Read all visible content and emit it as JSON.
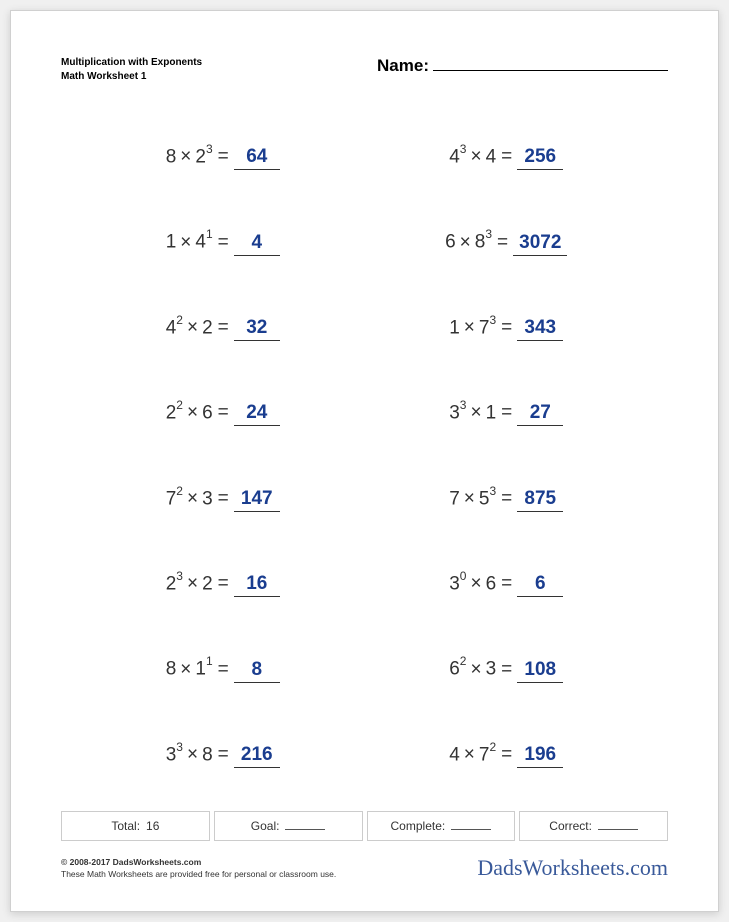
{
  "header": {
    "title_line1": "Multiplication with Exponents",
    "title_line2": "Math Worksheet 1",
    "name_label": "Name:"
  },
  "problems": [
    {
      "a": "8",
      "ae": "",
      "b": "2",
      "be": "3",
      "answer": "64"
    },
    {
      "a": "4",
      "ae": "3",
      "b": "4",
      "be": "",
      "answer": "256"
    },
    {
      "a": "1",
      "ae": "",
      "b": "4",
      "be": "1",
      "answer": "4"
    },
    {
      "a": "6",
      "ae": "",
      "b": "8",
      "be": "3",
      "answer": "3072"
    },
    {
      "a": "4",
      "ae": "2",
      "b": "2",
      "be": "",
      "answer": "32"
    },
    {
      "a": "1",
      "ae": "",
      "b": "7",
      "be": "3",
      "answer": "343"
    },
    {
      "a": "2",
      "ae": "2",
      "b": "6",
      "be": "",
      "answer": "24"
    },
    {
      "a": "3",
      "ae": "3",
      "b": "1",
      "be": "",
      "answer": "27"
    },
    {
      "a": "7",
      "ae": "2",
      "b": "3",
      "be": "",
      "answer": "147"
    },
    {
      "a": "7",
      "ae": "",
      "b": "5",
      "be": "3",
      "answer": "875"
    },
    {
      "a": "2",
      "ae": "3",
      "b": "2",
      "be": "",
      "answer": "16"
    },
    {
      "a": "3",
      "ae": "0",
      "b": "6",
      "be": "",
      "answer": "6"
    },
    {
      "a": "8",
      "ae": "",
      "b": "1",
      "be": "1",
      "answer": "8"
    },
    {
      "a": "6",
      "ae": "2",
      "b": "3",
      "be": "",
      "answer": "108"
    },
    {
      "a": "3",
      "ae": "3",
      "b": "8",
      "be": "",
      "answer": "216"
    },
    {
      "a": "4",
      "ae": "",
      "b": "7",
      "be": "2",
      "answer": "196"
    }
  ],
  "footer": {
    "total_label": "Total:",
    "total_value": "16",
    "goal_label": "Goal:",
    "complete_label": "Complete:",
    "correct_label": "Correct:"
  },
  "bottom": {
    "copyright": "© 2008-2017 DadsWorksheets.com",
    "tagline": "These Math Worksheets are provided free for personal or classroom use.",
    "logo": "DadsWorksheets.com"
  },
  "colors": {
    "answer_color": "#1a3d8f",
    "text_color": "#333333",
    "page_bg": "#ffffff"
  }
}
